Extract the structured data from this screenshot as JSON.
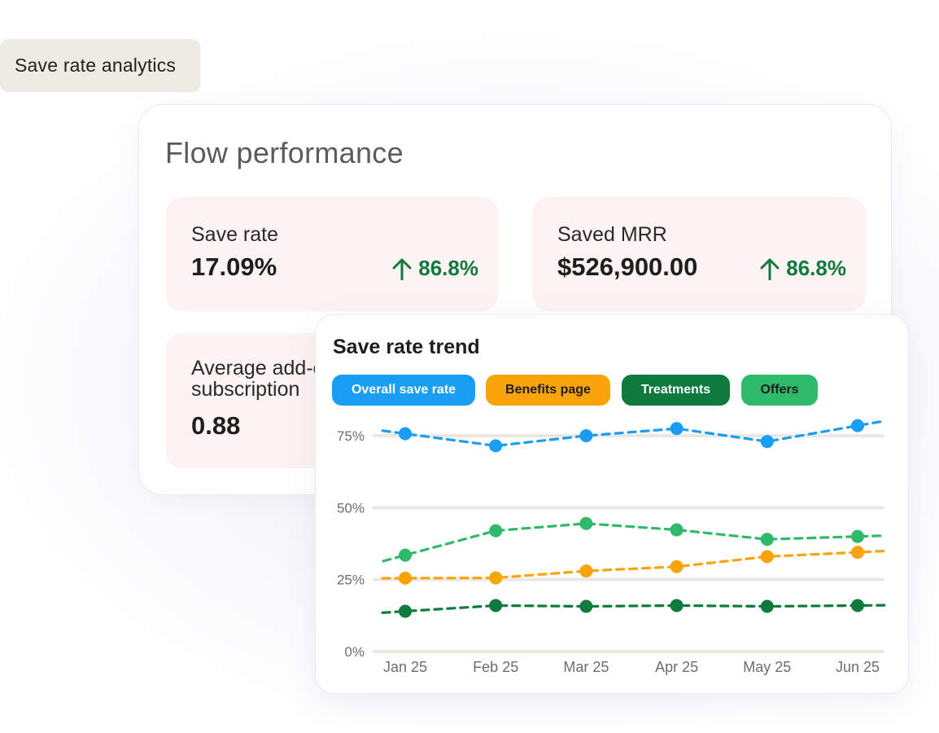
{
  "header": {
    "tag_label": "Save rate analytics"
  },
  "flow": {
    "title": "Flow performance",
    "save_rate": {
      "label": "Save rate",
      "value": "17.09%",
      "change": "86.8%"
    },
    "saved_mrr": {
      "label": "Saved MRR",
      "value": "$526,900.00",
      "change": "86.8%"
    },
    "avg": {
      "label": "Average add-ons per subscription",
      "value": "0.88"
    }
  },
  "trend": {
    "title": "Save rate trend",
    "filters": [
      "Overall save rate",
      "Benefits page",
      "Treatments",
      "Offers"
    ]
  },
  "colors": {
    "overall": "#1a9df5",
    "benefits": "#f9a40b",
    "treatments": "#0f7a3d",
    "offers": "#2fba6b",
    "positive": "#0f7a3d"
  },
  "chart_data": {
    "type": "line",
    "title": "Save rate trend",
    "x": [
      "Jan 25",
      "Feb 25",
      "Mar 25",
      "Apr 25",
      "May 25",
      "Jun 25"
    ],
    "yticks": [
      "0%",
      "25%",
      "50%",
      "75%"
    ],
    "ylim": [
      0,
      75
    ],
    "grid": true,
    "series": [
      {
        "name": "Overall save rate",
        "color": "#1a9df5",
        "values": [
          75.7,
          71.5,
          75,
          77.5,
          73,
          78.5
        ]
      },
      {
        "name": "Benefits page",
        "color": "#f9a40b",
        "values": [
          25.5,
          25.6,
          28,
          29.5,
          33,
          34.5
        ]
      },
      {
        "name": "Treatments",
        "color": "#0f7a3d",
        "values": [
          14,
          16,
          15.7,
          16,
          15.7,
          16
        ]
      },
      {
        "name": "Offers",
        "color": "#2fba6b",
        "values": [
          33.5,
          42,
          44.5,
          42.3,
          39,
          40
        ]
      }
    ]
  }
}
